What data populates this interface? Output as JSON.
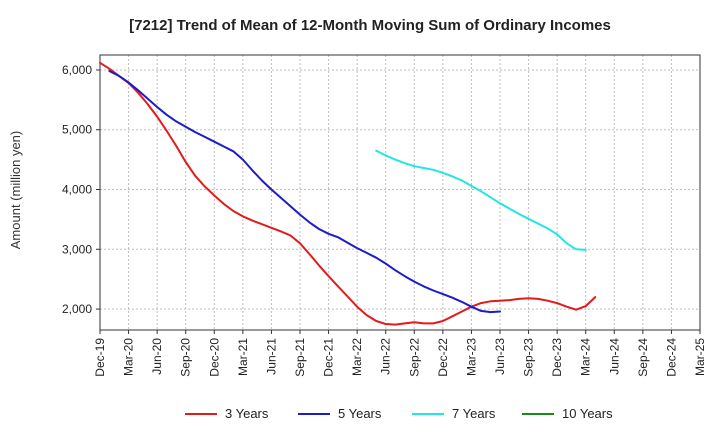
{
  "chart_data": {
    "type": "line",
    "title": "[7212]  Trend of Mean of 12-Month Moving Sum of Ordinary Incomes",
    "xlabel": "",
    "ylabel": "Amount (million yen)",
    "ylim": [
      1650,
      6250
    ],
    "grid": true,
    "legend_position": "bottom",
    "x_ticks": [
      "Dec-19",
      "Mar-20",
      "Jun-20",
      "Sep-20",
      "Dec-20",
      "Mar-21",
      "Jun-21",
      "Sep-21",
      "Dec-21",
      "Mar-22",
      "Jun-22",
      "Sep-22",
      "Dec-22",
      "Mar-23",
      "Jun-23",
      "Sep-23",
      "Dec-23",
      "Mar-24",
      "Jun-24",
      "Sep-24",
      "Dec-24",
      "Mar-25"
    ],
    "y_ticks": [
      2000,
      3000,
      4000,
      5000,
      6000
    ],
    "y_tick_labels": [
      "2,000",
      "3,000",
      "4,000",
      "5,000",
      "6,000"
    ],
    "series": [
      {
        "name": "3 Years",
        "color": "#e31a1c",
        "start_index": 0,
        "values": [
          6120,
          6020,
          5900,
          5780,
          5620,
          5430,
          5220,
          4980,
          4730,
          4460,
          4230,
          4050,
          3900,
          3760,
          3640,
          3550,
          3480,
          3420,
          3360,
          3300,
          3230,
          3100,
          2920,
          2730,
          2550,
          2380,
          2210,
          2040,
          1900,
          1800,
          1750,
          1740,
          1760,
          1780,
          1760,
          1760,
          1800,
          1880,
          1960,
          2040,
          2100,
          2130,
          2140,
          2150,
          2170,
          2180,
          2170,
          2140,
          2100,
          2040,
          1990,
          2050,
          2200
        ]
      },
      {
        "name": "5 Years",
        "color": "#1c1cc8",
        "start_index": 1,
        "values": [
          5980,
          5900,
          5790,
          5660,
          5520,
          5380,
          5250,
          5140,
          5050,
          4960,
          4880,
          4800,
          4720,
          4640,
          4500,
          4320,
          4150,
          4000,
          3860,
          3720,
          3580,
          3450,
          3340,
          3260,
          3200,
          3110,
          3020,
          2940,
          2860,
          2760,
          2650,
          2550,
          2460,
          2380,
          2310,
          2250,
          2190,
          2120,
          2040,
          1970,
          1950,
          1960
        ]
      },
      {
        "name": "7 Years",
        "color": "#22e5e5",
        "start_index": 29,
        "values": [
          4650,
          4570,
          4500,
          4440,
          4390,
          4360,
          4330,
          4280,
          4220,
          4150,
          4060,
          3970,
          3870,
          3770,
          3680,
          3590,
          3510,
          3430,
          3350,
          3250,
          3100,
          3000,
          2990
        ]
      },
      {
        "name": "10 Years",
        "color": "#1a8a1a",
        "start_index": 0,
        "values": []
      }
    ]
  }
}
